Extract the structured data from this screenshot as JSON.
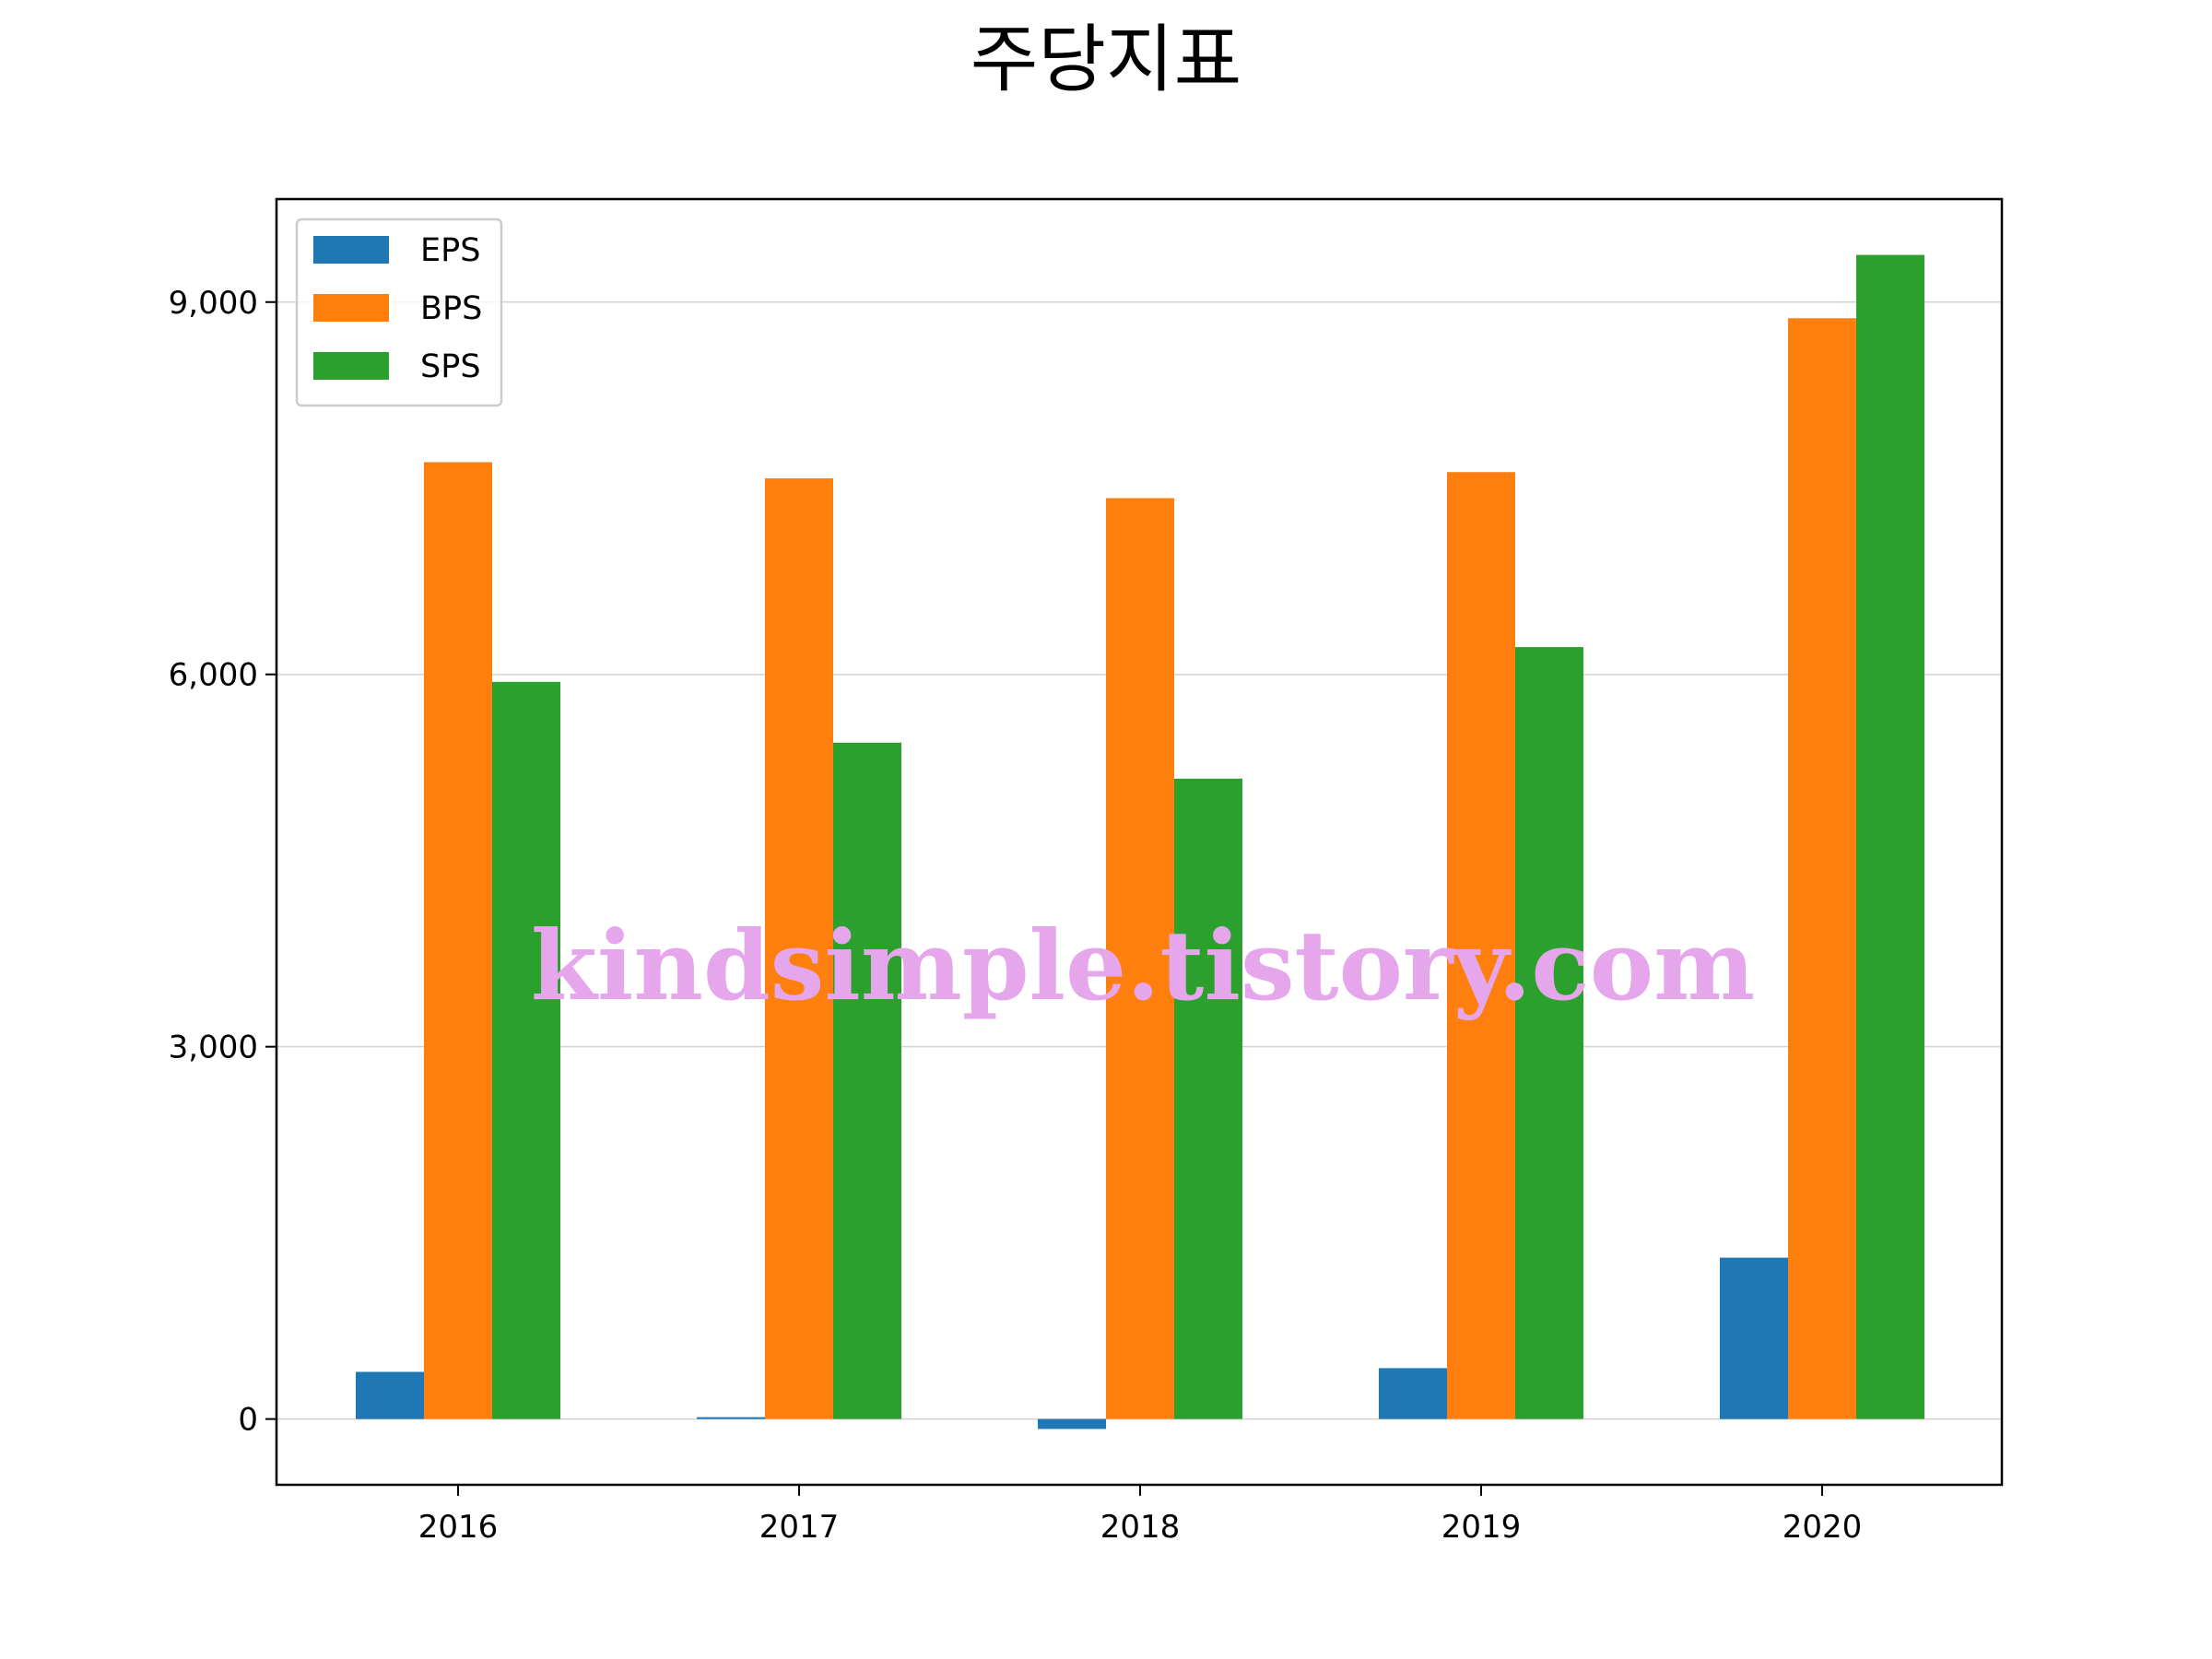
{
  "chart_data": {
    "type": "bar",
    "title": "주당지표",
    "xlabel": "",
    "ylabel": "",
    "categories": [
      "2016",
      "2017",
      "2018",
      "2019",
      "2020"
    ],
    "series": [
      {
        "name": "EPS",
        "color": "#1f77b4",
        "values": [
          380,
          15,
          -80,
          410,
          1300
        ]
      },
      {
        "name": "BPS",
        "color": "#ff7f0e",
        "values": [
          7710,
          7580,
          7420,
          7630,
          8870
        ]
      },
      {
        "name": "SPS",
        "color": "#2ca02c",
        "values": [
          5940,
          5450,
          5160,
          6220,
          9380
        ]
      }
    ],
    "ylim": [
      -530,
      9830
    ],
    "yticks": [
      0,
      3000,
      6000,
      9000
    ],
    "ytick_labels": [
      "0",
      "3,000",
      "6,000",
      "9,000"
    ],
    "grid": "y",
    "legend_position": "upper-left"
  },
  "watermark": "kindsimple.tistory.com"
}
